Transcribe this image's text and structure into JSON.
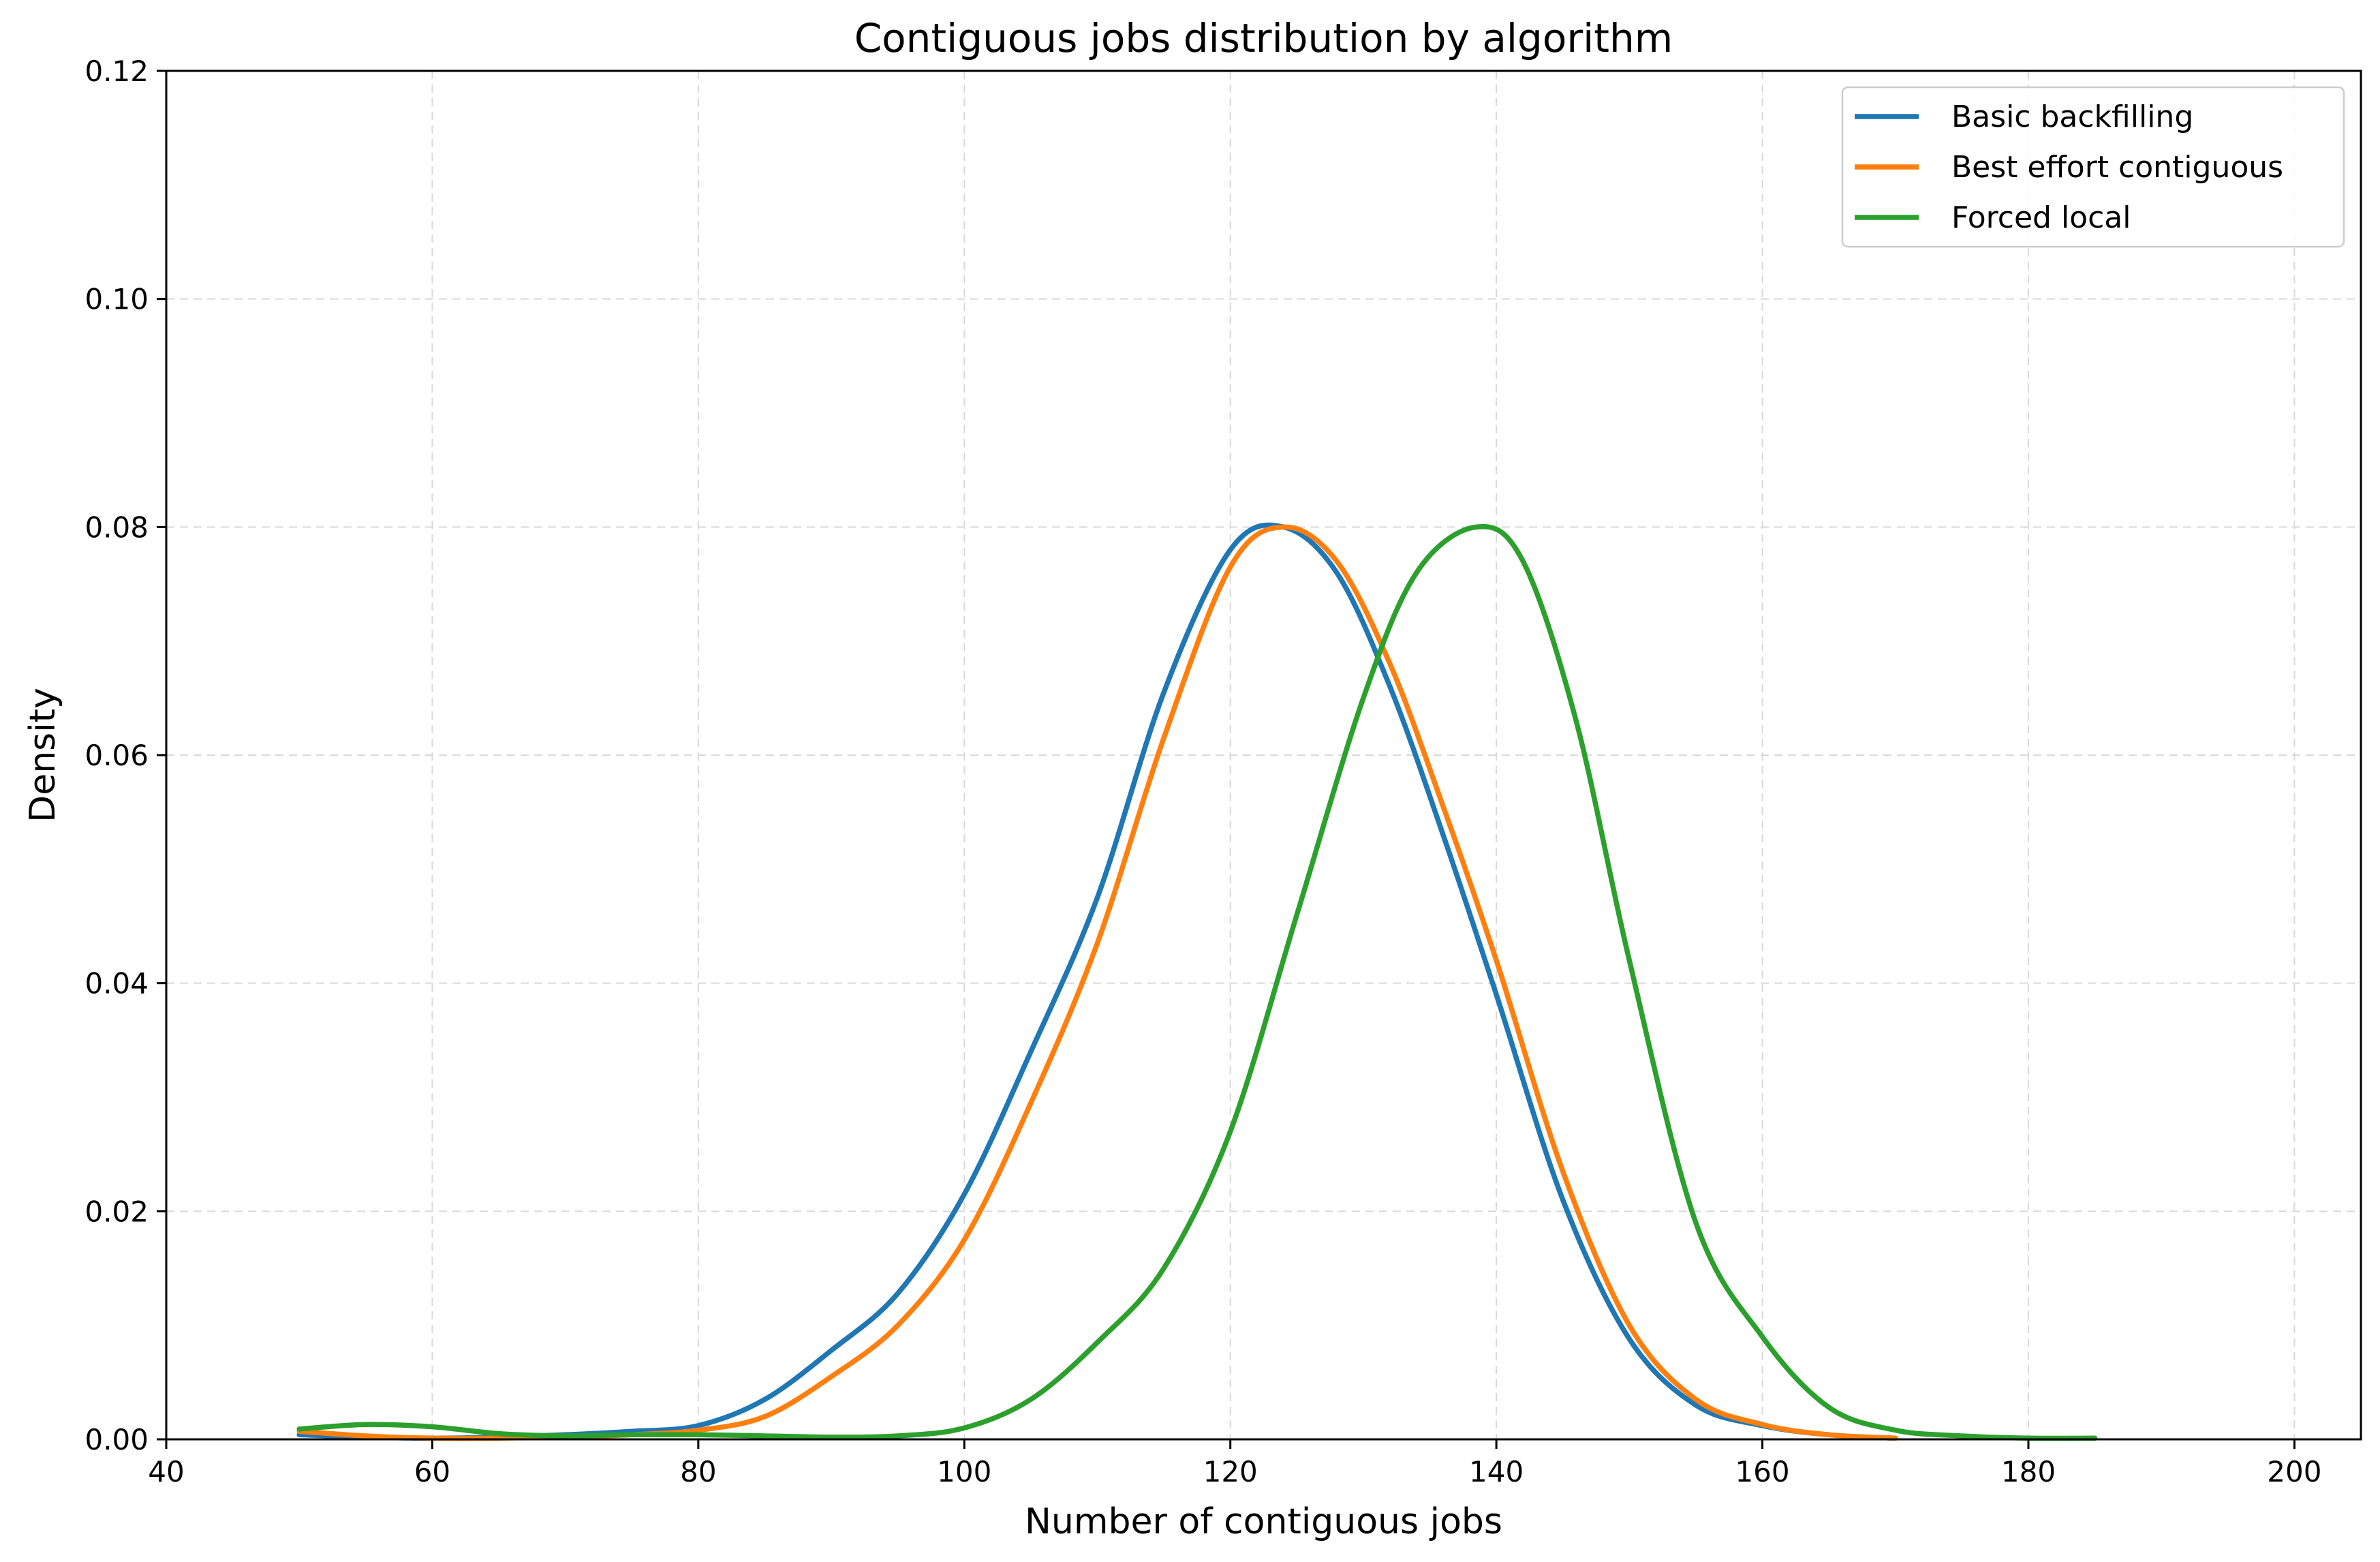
{
  "chart_data": {
    "type": "line",
    "title": "Contiguous jobs distribution by algorithm",
    "xlabel": "Number of contiguous jobs",
    "ylabel": "Density",
    "xlim": [
      40,
      205
    ],
    "ylim": [
      0,
      0.12
    ],
    "xticks": [
      40,
      60,
      80,
      100,
      120,
      140,
      160,
      180,
      200
    ],
    "yticks": [
      0.0,
      0.02,
      0.04,
      0.06,
      0.08,
      0.1,
      0.12
    ],
    "xtick_labels": [
      "40",
      "60",
      "80",
      "100",
      "120",
      "140",
      "160",
      "180",
      "200"
    ],
    "ytick_labels": [
      "0.00",
      "0.02",
      "0.04",
      "0.06",
      "0.08",
      "0.10",
      "0.12"
    ],
    "grid": true,
    "legend_position": "top-right",
    "series": [
      {
        "name": "Basic backfilling",
        "color": "#1f77b4",
        "x": [
          50,
          55,
          60,
          65,
          70,
          75,
          80,
          85,
          90,
          95,
          100,
          105,
          110,
          115,
          120,
          124,
          128,
          132,
          136,
          140,
          145,
          150,
          155,
          160,
          165,
          170
        ],
        "y": [
          0.0004,
          0.0002,
          0.0001,
          0.0002,
          0.0004,
          0.0007,
          0.0012,
          0.0035,
          0.0078,
          0.0128,
          0.0215,
          0.034,
          0.0475,
          0.0655,
          0.078,
          0.08,
          0.076,
          0.066,
          0.053,
          0.039,
          0.021,
          0.0088,
          0.003,
          0.0012,
          0.0004,
          0.0001
        ]
      },
      {
        "name": "Best effort contiguous",
        "color": "#ff7f0e",
        "x": [
          50,
          55,
          60,
          65,
          70,
          75,
          80,
          85,
          90,
          95,
          100,
          105,
          110,
          115,
          120,
          124,
          128,
          132,
          136,
          140,
          145,
          150,
          155,
          160,
          165,
          170
        ],
        "y": [
          0.0007,
          0.0003,
          0.0001,
          0.0001,
          0.0002,
          0.0004,
          0.0008,
          0.002,
          0.0055,
          0.01,
          0.0175,
          0.0295,
          0.0435,
          0.0615,
          0.0765,
          0.08,
          0.077,
          0.068,
          0.0555,
          0.042,
          0.0235,
          0.01,
          0.0035,
          0.0013,
          0.0004,
          0.0001
        ]
      },
      {
        "name": "Forced local",
        "color": "#2ca02c",
        "x": [
          50,
          55,
          60,
          65,
          70,
          75,
          80,
          85,
          90,
          95,
          100,
          105,
          110,
          115,
          120,
          125,
          130,
          134,
          138.5,
          142,
          146,
          150,
          155,
          160,
          165,
          170,
          175,
          180,
          185
        ],
        "y": [
          0.0009,
          0.0013,
          0.0011,
          0.0005,
          0.0003,
          0.0004,
          0.0004,
          0.0003,
          0.0002,
          0.0003,
          0.001,
          0.0035,
          0.0085,
          0.015,
          0.027,
          0.046,
          0.065,
          0.076,
          0.08,
          0.077,
          0.063,
          0.042,
          0.019,
          0.009,
          0.0028,
          0.0008,
          0.0003,
          0.0001,
          0.0001
        ]
      }
    ]
  }
}
